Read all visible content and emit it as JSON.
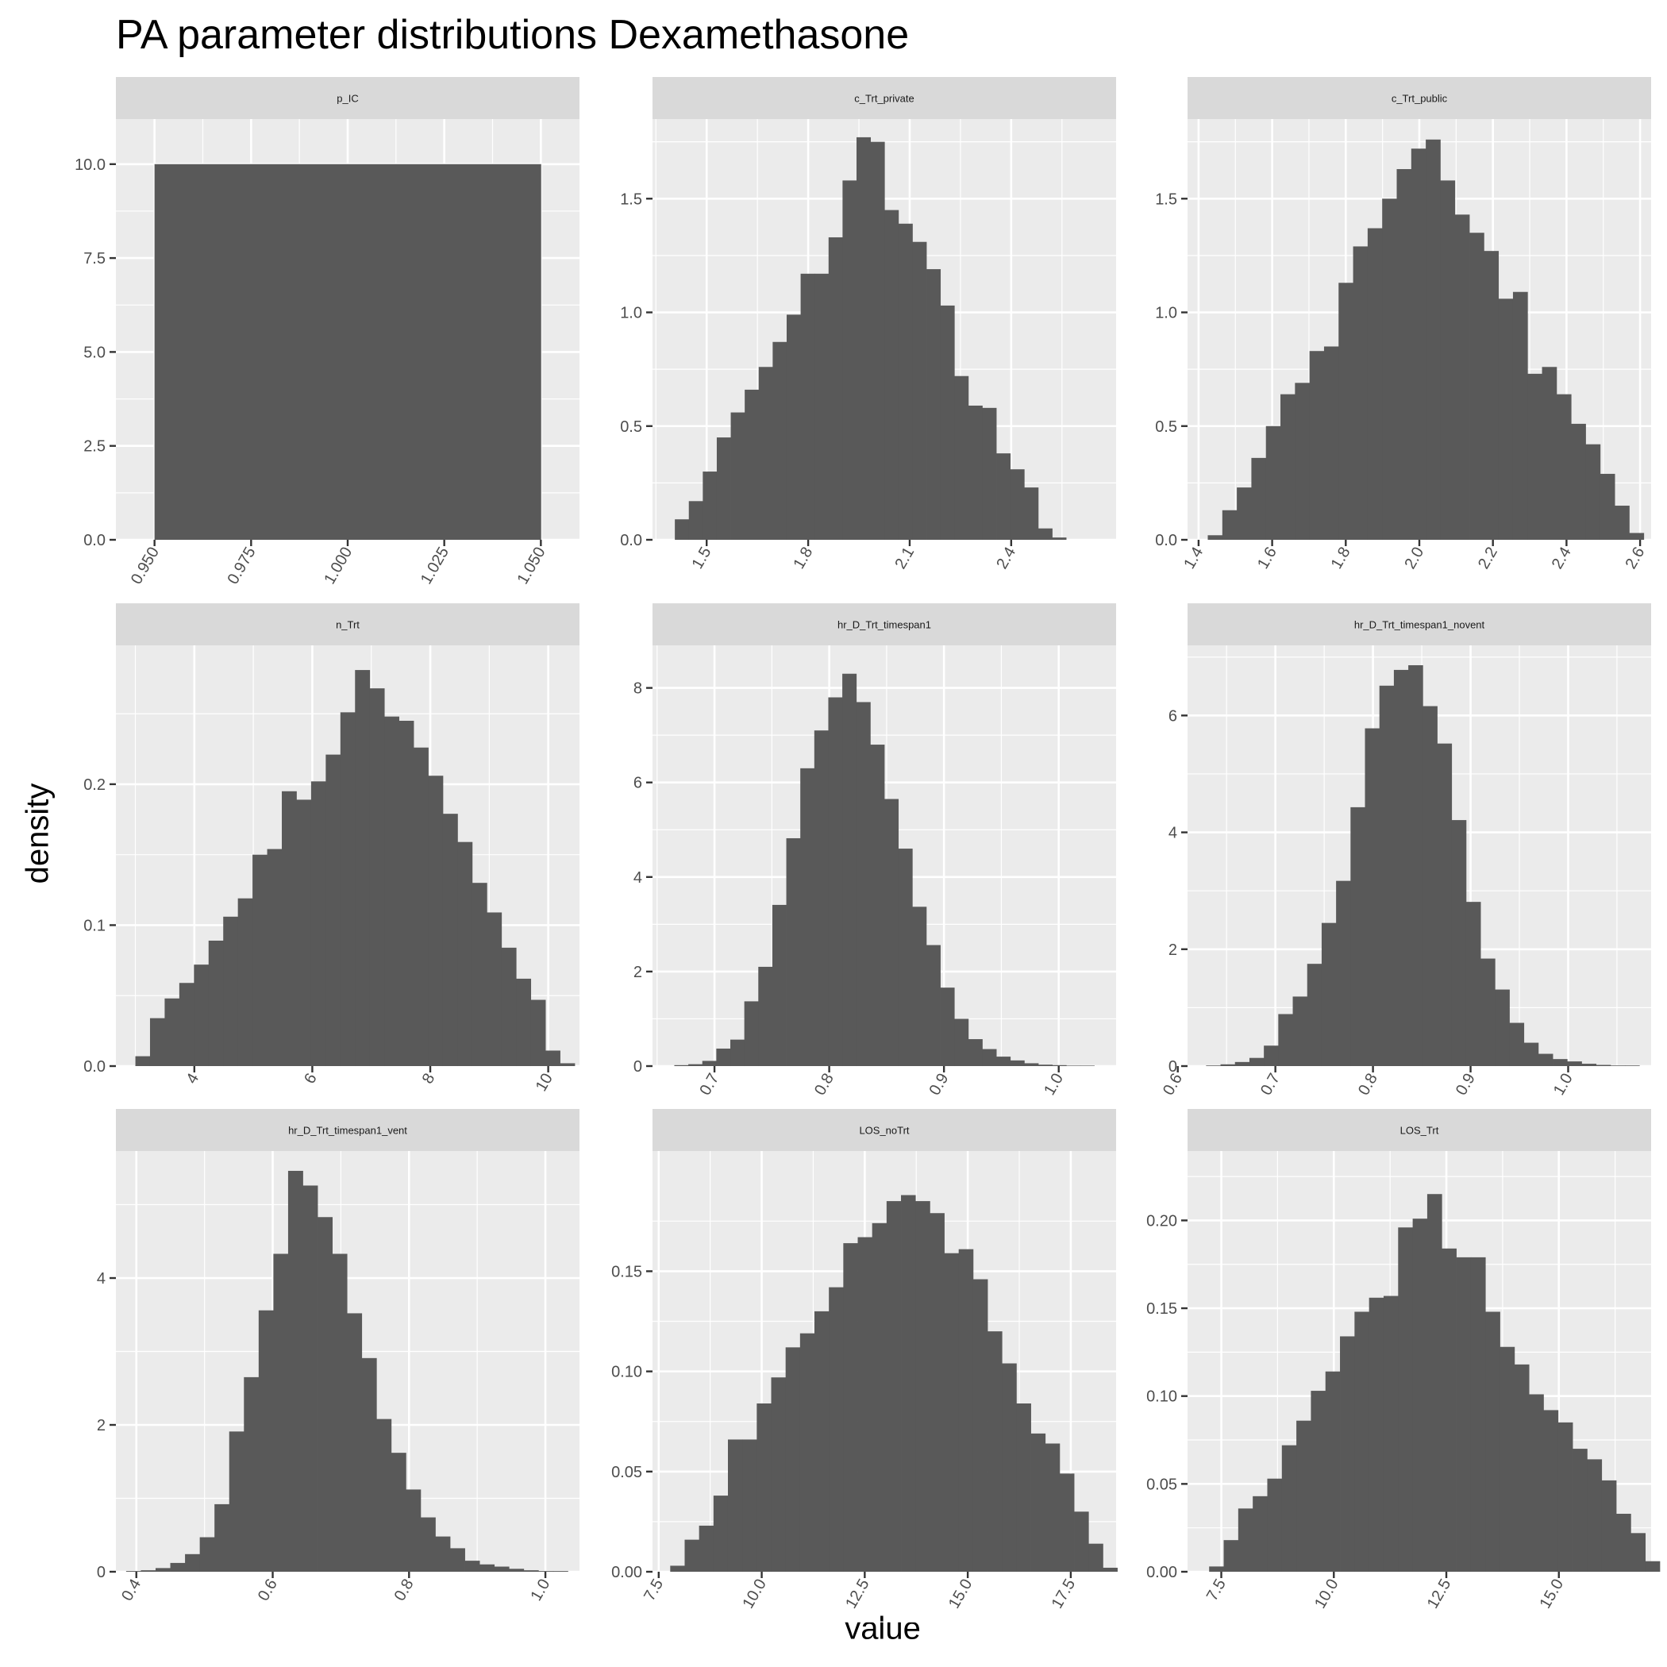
{
  "title": "PA parameter distributions Dexamethasone",
  "x_axis_title": "value",
  "y_axis_title": "density",
  "chart_data": [
    {
      "type": "bar",
      "facet": "p_IC",
      "x_range": [
        0.94,
        1.06
      ],
      "ylim": [
        0,
        11.2
      ],
      "x_ticks": [
        "0.950",
        "0.975",
        "1.000",
        "1.025",
        "1.050"
      ],
      "x_tick_values": [
        0.95,
        0.975,
        1.0,
        1.025,
        1.05
      ],
      "y_ticks": [
        "0.0",
        "2.5",
        "5.0",
        "7.5",
        "10.0"
      ],
      "y_tick_values": [
        0,
        2.5,
        5,
        7.5,
        10
      ],
      "bin_start": 0.95,
      "bin_width": 0.1,
      "values": [
        10
      ]
    },
    {
      "type": "bar",
      "facet": "c_Trt_private",
      "x_range": [
        1.34,
        2.71
      ],
      "ylim": [
        0,
        1.85
      ],
      "x_ticks": [
        "1.5",
        "1.8",
        "2.1",
        "2.4"
      ],
      "x_tick_values": [
        1.5,
        1.8,
        2.1,
        2.4
      ],
      "y_ticks": [
        "0.0",
        "0.5",
        "1.0",
        "1.5"
      ],
      "y_tick_values": [
        0,
        0.5,
        1,
        1.5
      ],
      "bin_start": 1.406,
      "bin_width": 0.0413,
      "values": [
        0.09,
        0.17,
        0.3,
        0.45,
        0.56,
        0.66,
        0.76,
        0.87,
        0.99,
        1.17,
        1.17,
        1.33,
        1.58,
        1.77,
        1.75,
        1.45,
        1.39,
        1.31,
        1.19,
        1.03,
        0.72,
        0.59,
        0.58,
        0.38,
        0.31,
        0.23,
        0.05,
        0.01
      ]
    },
    {
      "type": "bar",
      "facet": "c_Trt_public",
      "x_range": [
        1.37,
        2.63
      ],
      "ylim": [
        0,
        1.85
      ],
      "x_ticks": [
        "1.4",
        "1.6",
        "1.8",
        "2.0",
        "2.2",
        "2.4",
        "2.6"
      ],
      "x_tick_values": [
        1.4,
        1.6,
        1.8,
        2.0,
        2.2,
        2.4,
        2.6
      ],
      "y_ticks": [
        "0.0",
        "0.5",
        "1.0",
        "1.5"
      ],
      "y_tick_values": [
        0,
        0.5,
        1,
        1.5
      ],
      "bin_start": 1.425,
      "bin_width": 0.0395,
      "values": [
        0.02,
        0.13,
        0.23,
        0.36,
        0.5,
        0.64,
        0.69,
        0.83,
        0.85,
        1.13,
        1.29,
        1.37,
        1.5,
        1.63,
        1.72,
        1.76,
        1.58,
        1.43,
        1.35,
        1.27,
        1.06,
        1.09,
        0.73,
        0.76,
        0.64,
        0.51,
        0.42,
        0.29,
        0.15,
        0.03
      ]
    },
    {
      "type": "bar",
      "facet": "n_Trt",
      "x_range": [
        2.67,
        10.53
      ],
      "ylim": [
        0,
        0.2985
      ],
      "x_ticks": [
        "4",
        "6",
        "8",
        "10"
      ],
      "x_tick_values": [
        4,
        6,
        8,
        10
      ],
      "y_ticks": [
        "0.0",
        "0.1",
        "0.2"
      ],
      "y_tick_values": [
        0,
        0.1,
        0.2
      ],
      "bin_start": 3.0,
      "bin_width": 0.2483,
      "values": [
        0.007,
        0.034,
        0.048,
        0.059,
        0.072,
        0.089,
        0.106,
        0.119,
        0.15,
        0.154,
        0.195,
        0.189,
        0.202,
        0.221,
        0.251,
        0.281,
        0.268,
        0.248,
        0.245,
        0.226,
        0.206,
        0.179,
        0.159,
        0.13,
        0.109,
        0.084,
        0.062,
        0.047,
        0.011,
        0.002
      ]
    },
    {
      "type": "bar",
      "facet": "hr_D_Trt_timespan1",
      "x_range": [
        0.646,
        1.05
      ],
      "ylim": [
        0,
        8.9
      ],
      "x_ticks": [
        "0.7",
        "0.8",
        "0.9",
        "1.0"
      ],
      "x_tick_values": [
        0.7,
        0.8,
        0.9,
        1.0
      ],
      "y_ticks": [
        "0",
        "2",
        "4",
        "6",
        "8"
      ],
      "y_tick_values": [
        0,
        2,
        4,
        6,
        8
      ],
      "bin_start": 0.665,
      "bin_width": 0.0122,
      "values": [
        0.02,
        0.04,
        0.11,
        0.37,
        0.56,
        1.37,
        2.1,
        3.41,
        4.82,
        6.3,
        7.1,
        7.8,
        8.3,
        7.7,
        6.8,
        5.65,
        4.6,
        3.37,
        2.56,
        1.66,
        1.0,
        0.57,
        0.36,
        0.2,
        0.12,
        0.06,
        0.03,
        0.02,
        0.01,
        0.01
      ]
    },
    {
      "type": "bar",
      "facet": "hr_D_Trt_timespan1_novent",
      "x_range": [
        0.61,
        1.085
      ],
      "ylim": [
        0,
        7.2
      ],
      "x_ticks": [
        "0.6",
        "0.7",
        "0.8",
        "0.9",
        "1.0"
      ],
      "x_tick_values": [
        0.6,
        0.7,
        0.8,
        0.9,
        1.0
      ],
      "y_ticks": [
        "0",
        "2",
        "4",
        "6"
      ],
      "y_tick_values": [
        0,
        2,
        4,
        6
      ],
      "bin_start": 0.629,
      "bin_width": 0.0148,
      "values": [
        0.01,
        0.03,
        0.07,
        0.14,
        0.35,
        0.89,
        1.19,
        1.75,
        2.45,
        3.17,
        4.43,
        5.78,
        6.51,
        6.78,
        6.86,
        6.16,
        5.52,
        4.21,
        2.81,
        1.84,
        1.31,
        0.74,
        0.4,
        0.21,
        0.12,
        0.08,
        0.04,
        0.02,
        0.01,
        0.01
      ]
    },
    {
      "type": "bar",
      "facet": "hr_D_Trt_timespan1_vent",
      "x_range": [
        0.37,
        1.05
      ],
      "ylim": [
        0,
        5.73
      ],
      "x_ticks": [
        "0.4",
        "0.6",
        "0.8",
        "1.0"
      ],
      "x_tick_values": [
        0.4,
        0.6,
        0.8,
        1.0
      ],
      "y_ticks": [
        "0",
        "2",
        "4"
      ],
      "y_tick_values": [
        0,
        2,
        4
      ],
      "bin_start": 0.385,
      "bin_width": 0.0216,
      "values": [
        0.01,
        0.02,
        0.05,
        0.12,
        0.24,
        0.47,
        0.92,
        1.91,
        2.65,
        3.56,
        4.33,
        5.46,
        5.26,
        4.83,
        4.33,
        3.52,
        2.91,
        2.08,
        1.62,
        1.12,
        0.74,
        0.48,
        0.32,
        0.15,
        0.1,
        0.07,
        0.04,
        0.02,
        0.01,
        0.01
      ]
    },
    {
      "type": "bar",
      "facet": "LOS_noTrt",
      "x_range": [
        7.35,
        18.6
      ],
      "ylim": [
        0,
        0.21
      ],
      "x_ticks": [
        "7.5",
        "10.0",
        "12.5",
        "15.0",
        "17.5"
      ],
      "x_tick_values": [
        7.5,
        10,
        12.5,
        15,
        17.5
      ],
      "y_ticks": [
        "0.00",
        "0.05",
        "0.10",
        "0.15"
      ],
      "y_tick_values": [
        0,
        0.05,
        0.1,
        0.15
      ],
      "bin_start": 7.78,
      "bin_width": 0.35,
      "values": [
        0.003,
        0.016,
        0.023,
        0.038,
        0.066,
        0.066,
        0.084,
        0.097,
        0.112,
        0.119,
        0.13,
        0.142,
        0.164,
        0.167,
        0.174,
        0.185,
        0.188,
        0.185,
        0.179,
        0.159,
        0.161,
        0.146,
        0.12,
        0.104,
        0.084,
        0.069,
        0.064,
        0.049,
        0.03,
        0.014,
        0.002
      ]
    },
    {
      "type": "bar",
      "facet": "LOS_Trt",
      "x_range": [
        6.75,
        17.05
      ],
      "ylim": [
        0,
        0.2395
      ],
      "x_ticks": [
        "7.5",
        "10.0",
        "12.5",
        "15.0"
      ],
      "x_tick_values": [
        7.5,
        10,
        12.5,
        15
      ],
      "y_ticks": [
        "0.00",
        "0.05",
        "0.10",
        "0.15",
        "0.20"
      ],
      "y_tick_values": [
        0,
        0.05,
        0.1,
        0.15,
        0.2
      ],
      "bin_start": 7.23,
      "bin_width": 0.323,
      "values": [
        0.003,
        0.018,
        0.036,
        0.043,
        0.053,
        0.072,
        0.086,
        0.103,
        0.114,
        0.134,
        0.148,
        0.156,
        0.157,
        0.196,
        0.201,
        0.215,
        0.184,
        0.179,
        0.179,
        0.148,
        0.128,
        0.118,
        0.101,
        0.092,
        0.085,
        0.07,
        0.064,
        0.052,
        0.033,
        0.022,
        0.006
      ]
    }
  ]
}
